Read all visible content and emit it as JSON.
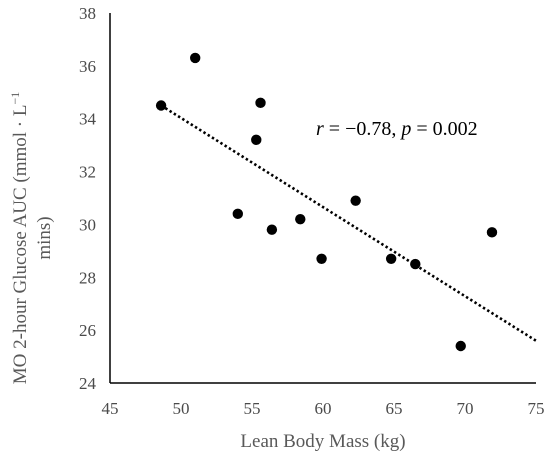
{
  "chart_data": {
    "type": "scatter",
    "xlabel": "Lean Body Mass (kg)",
    "ylabel_line1": "MO 2-hour Glucose AUC (mmol · L",
    "ylabel_sup": "−1",
    "ylabel_line2": "mins)",
    "xlim": [
      45,
      75
    ],
    "ylim": [
      24,
      38
    ],
    "x_ticks": [
      45,
      50,
      55,
      60,
      65,
      70,
      75
    ],
    "y_ticks": [
      24,
      26,
      28,
      30,
      32,
      34,
      36,
      38
    ],
    "points": [
      {
        "x": 48.6,
        "y": 34.5
      },
      {
        "x": 51.0,
        "y": 36.3
      },
      {
        "x": 54.0,
        "y": 30.4
      },
      {
        "x": 55.3,
        "y": 33.2
      },
      {
        "x": 55.6,
        "y": 34.6
      },
      {
        "x": 56.4,
        "y": 29.8
      },
      {
        "x": 58.4,
        "y": 30.2
      },
      {
        "x": 59.9,
        "y": 28.7
      },
      {
        "x": 62.3,
        "y": 30.9
      },
      {
        "x": 64.8,
        "y": 28.7
      },
      {
        "x": 66.5,
        "y": 28.5
      },
      {
        "x": 69.7,
        "y": 25.4
      },
      {
        "x": 71.9,
        "y": 29.7
      }
    ],
    "trendline": {
      "x1": 48.6,
      "y1": 34.5,
      "x2": 75,
      "y2": 25.6,
      "style": "dotted"
    },
    "annotation": {
      "r_symbol": "r",
      "r_value": " = −0.78, ",
      "p_symbol": "p",
      "p_value": " = 0.002"
    },
    "grid": false,
    "legend": "none",
    "colors": {
      "points": "#000000",
      "axes": "#000000",
      "trendline": "#000000"
    }
  }
}
